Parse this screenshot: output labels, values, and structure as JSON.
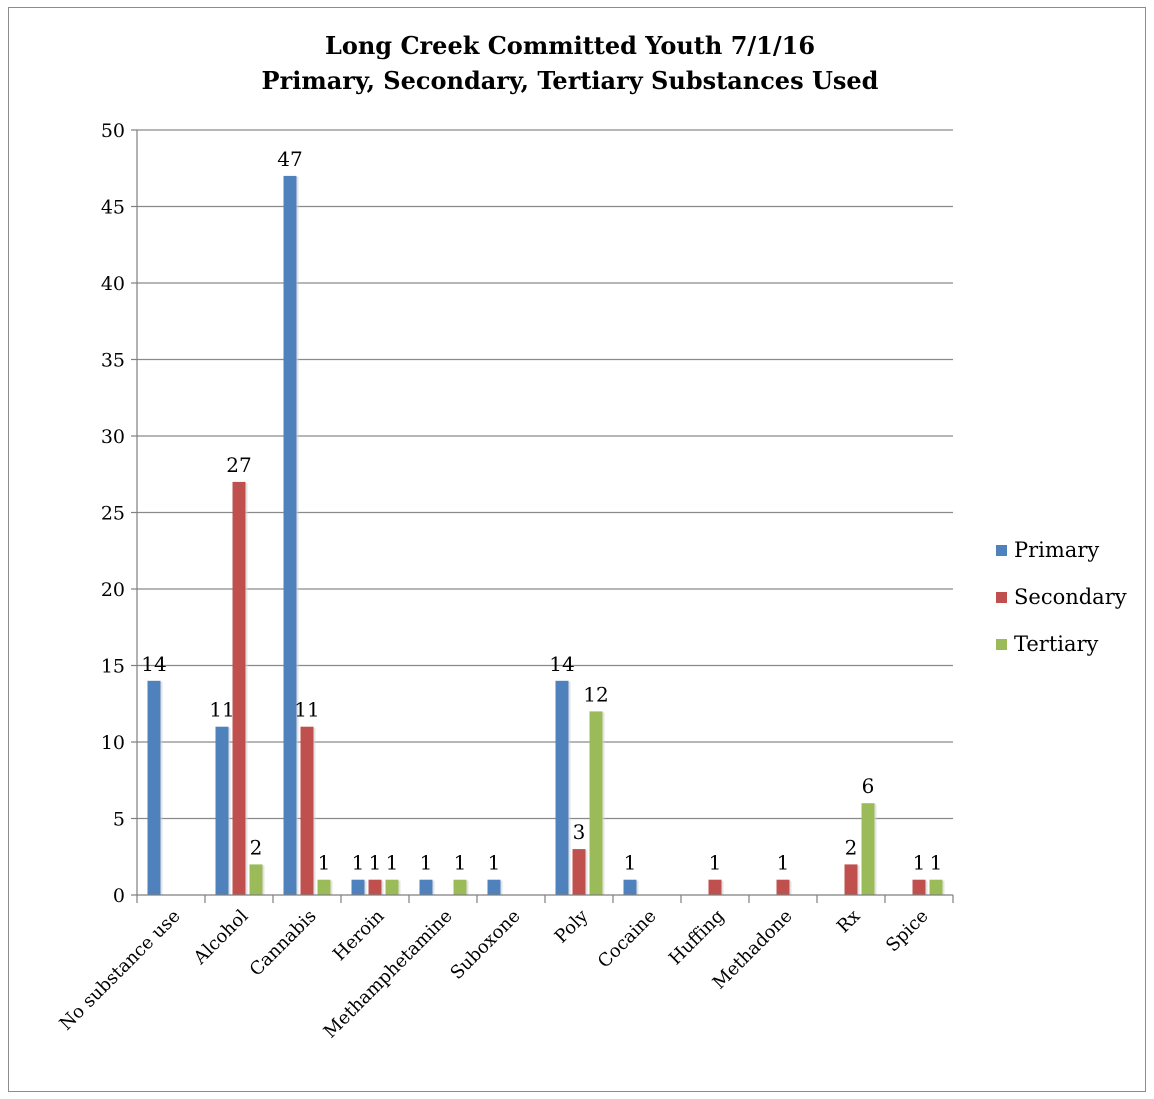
{
  "chart_data": {
    "type": "bar",
    "title": [
      "Long Creek Committed Youth 7/1/16",
      "Primary, Secondary, Tertiary Substances Used"
    ],
    "categories": [
      "No substance use",
      "Alcohol",
      "Cannabis",
      "Heroin",
      "Methamphetamine",
      "Suboxone",
      "Poly",
      "Cocaine",
      "Huffing",
      "Methadone",
      "Rx",
      "Spice"
    ],
    "series": [
      {
        "name": "Primary",
        "color": "#4F81BD",
        "values": [
          14,
          11,
          47,
          1,
          1,
          1,
          14,
          1,
          null,
          null,
          null,
          null
        ]
      },
      {
        "name": "Secondary",
        "color": "#C0504D",
        "values": [
          null,
          27,
          11,
          1,
          null,
          null,
          3,
          null,
          1,
          1,
          2,
          1
        ]
      },
      {
        "name": "Tertiary",
        "color": "#9BBB59",
        "values": [
          null,
          2,
          1,
          1,
          1,
          null,
          12,
          null,
          null,
          null,
          6,
          1
        ]
      }
    ],
    "ylim": [
      0,
      50
    ],
    "yticks": [
      0,
      5,
      10,
      15,
      20,
      25,
      30,
      35,
      40,
      45,
      50
    ],
    "grid": true,
    "legend_position": "right",
    "xlabel": "",
    "ylabel": ""
  }
}
